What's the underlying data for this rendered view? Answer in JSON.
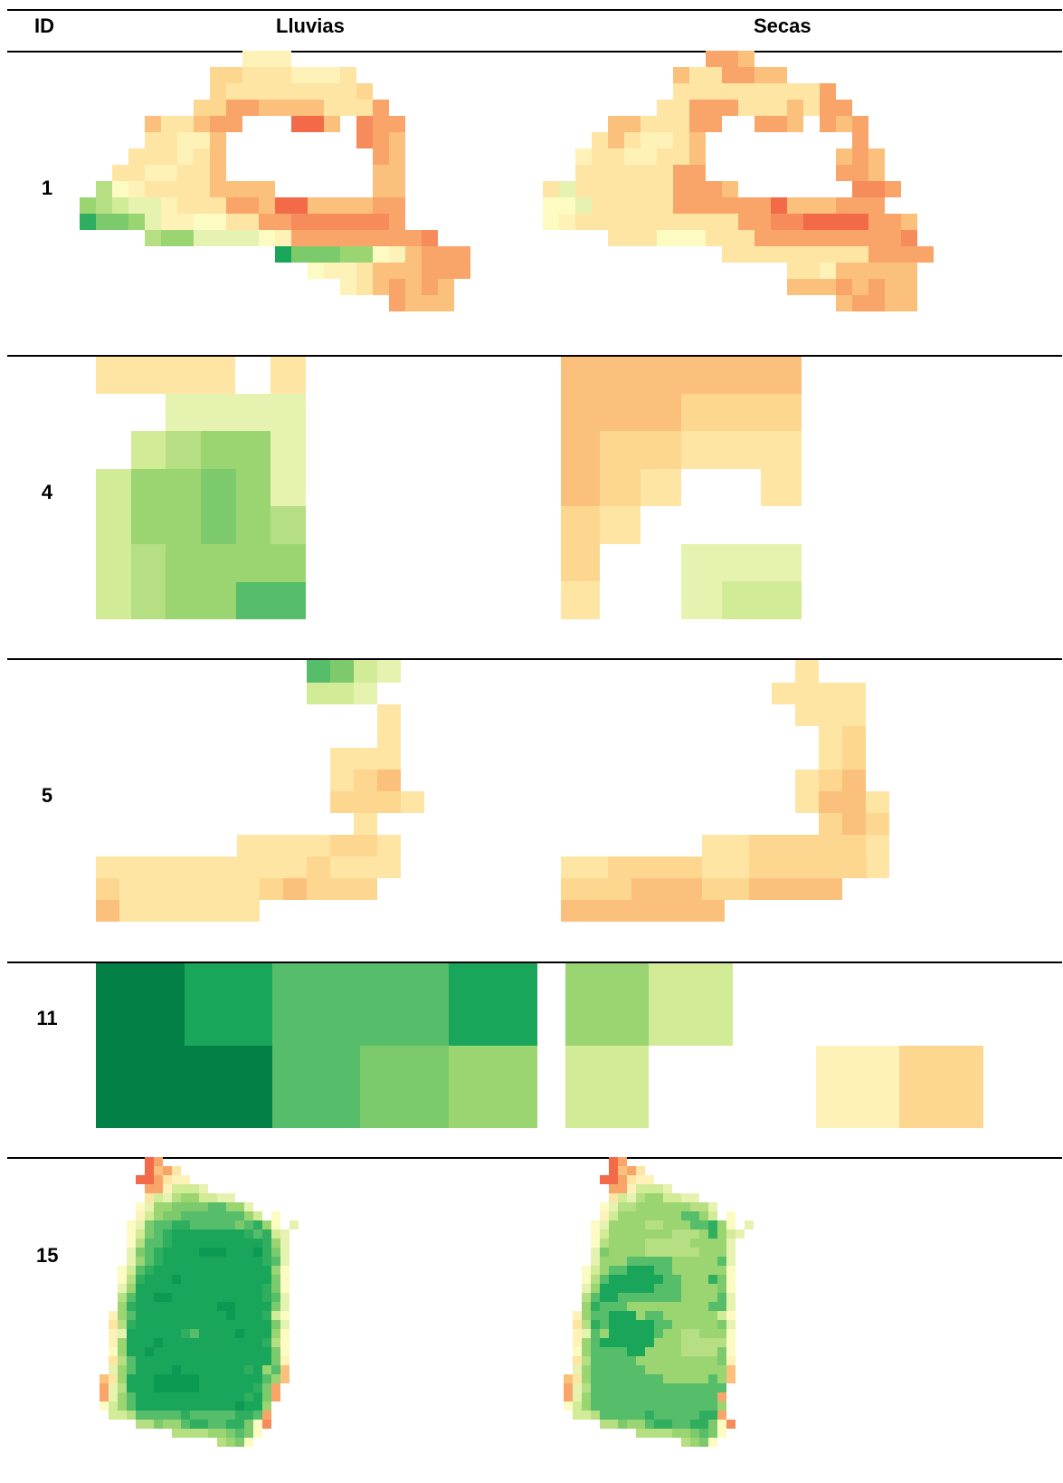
{
  "header": {
    "id_label": "ID",
    "col1_label": "Lluvias",
    "col2_label": "Secas"
  },
  "palette": {
    "r1": "#f26a47",
    "r2": "#f68b5b",
    "o1": "#f9a56a",
    "o2": "#fbc07c",
    "y1": "#fdd78f",
    "y2": "#fee5a3",
    "y3": "#fef2b8",
    "y4": "#fbfbc2",
    "g1": "#e6f2b0",
    "g2": "#d2eb96",
    "g3": "#b5df82",
    "g4": "#9bd571",
    "g5": "#7cca6c",
    "g6": "#56bd6a",
    "g7": "#2fae60",
    "g8": "#19a65a",
    "g9": "#0c9a53",
    "g10": "#028045"
  },
  "rows": [
    {
      "id": "1"
    },
    {
      "id": "4"
    },
    {
      "id": "5"
    },
    {
      "id": "11"
    },
    {
      "id": "15"
    }
  ]
}
